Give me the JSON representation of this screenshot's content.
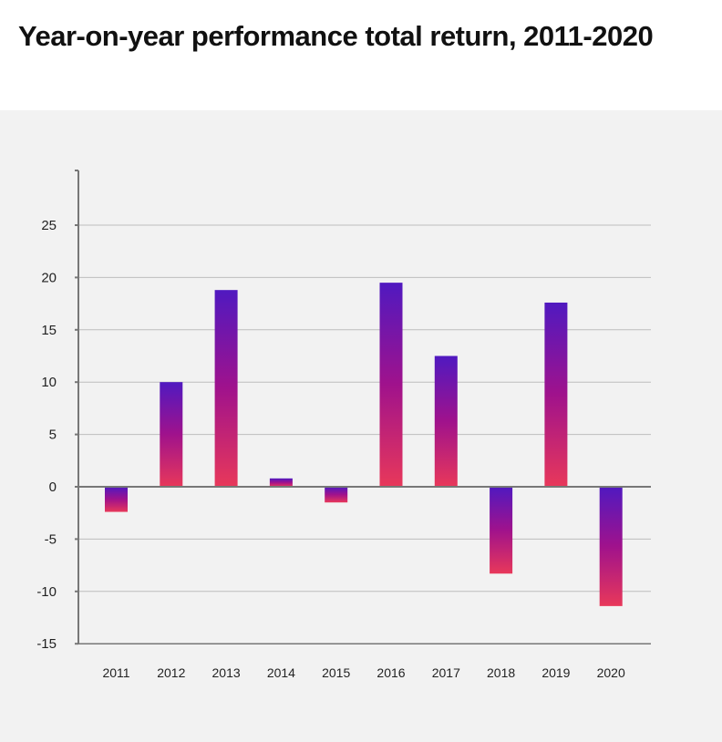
{
  "chart_data": {
    "type": "bar",
    "title": "Year-on-year performance total return, 2011-2020",
    "xlabel": "",
    "ylabel": "",
    "categories": [
      "2011",
      "2012",
      "2013",
      "2014",
      "2015",
      "2016",
      "2017",
      "2018",
      "2019",
      "2020"
    ],
    "values": [
      -2.4,
      10.0,
      18.8,
      0.8,
      -1.5,
      19.5,
      12.5,
      -8.3,
      17.6,
      -11.4
    ],
    "ylim": [
      -15,
      30
    ],
    "yticks": [
      "25",
      "20",
      "15",
      "10",
      "5",
      "0",
      "-5",
      "-10",
      "-15"
    ],
    "grid": true,
    "legend": "none",
    "colors": {
      "gradient_top": "#5019c0",
      "gradient_mid": "#a0128c",
      "gradient_bottom": "#e8385a",
      "background": "#f2f2f2"
    }
  }
}
